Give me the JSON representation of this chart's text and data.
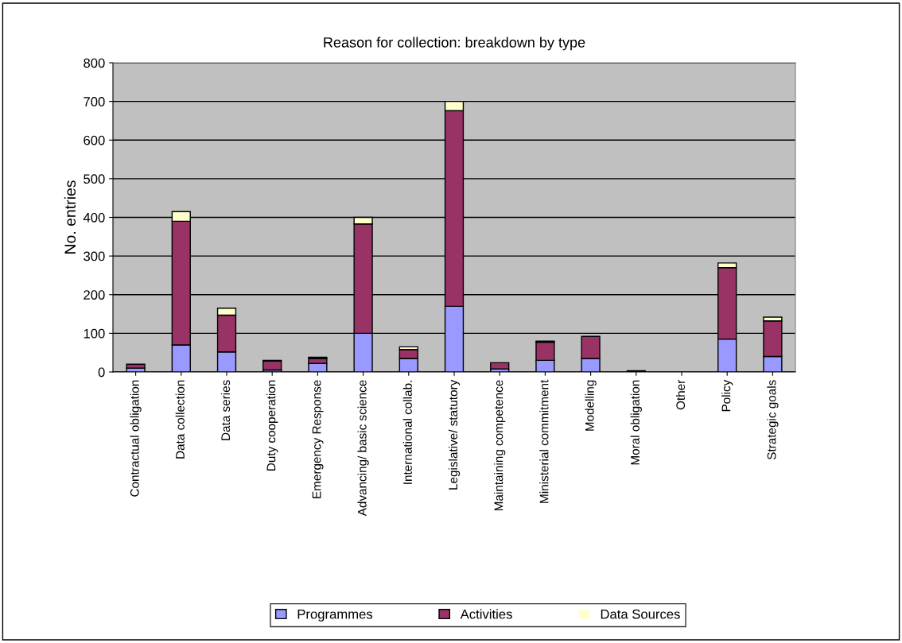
{
  "chart_data": {
    "type": "bar",
    "title": "Reason for collection: breakdown by type",
    "ylabel": "No. entries",
    "categories": [
      "Contractual obligation",
      "Data collection",
      "Data series",
      "Duty cooperation",
      "Emergency Response",
      "Advancing/ basic science",
      "International collab.",
      "Legislative/ statutory",
      "Maintaining competence",
      "Ministerial commitment",
      "Modelling",
      "Moral obligation",
      "Other",
      "Policy",
      "Strategic goals"
    ],
    "stacked": true,
    "series": [
      {
        "name": "Programmes",
        "color": "#9999ff",
        "values": [
          10,
          70,
          52,
          5,
          22,
          100,
          35,
          170,
          8,
          30,
          35,
          0,
          0,
          85,
          40
        ]
      },
      {
        "name": "Activities",
        "color": "#993366",
        "values": [
          10,
          320,
          95,
          23,
          13,
          283,
          23,
          506,
          16,
          47,
          57,
          3,
          0,
          185,
          92
        ]
      },
      {
        "name": "Data Sources",
        "color": "#ffffcc",
        "values": [
          0,
          25,
          18,
          2,
          3,
          17,
          7,
          24,
          0,
          3,
          0,
          0,
          0,
          12,
          10
        ]
      }
    ],
    "ylim": [
      0,
      800
    ],
    "yticks": [
      0,
      100,
      200,
      300,
      400,
      500,
      600,
      700,
      800
    ],
    "grid": "y",
    "legend": "bottom"
  }
}
